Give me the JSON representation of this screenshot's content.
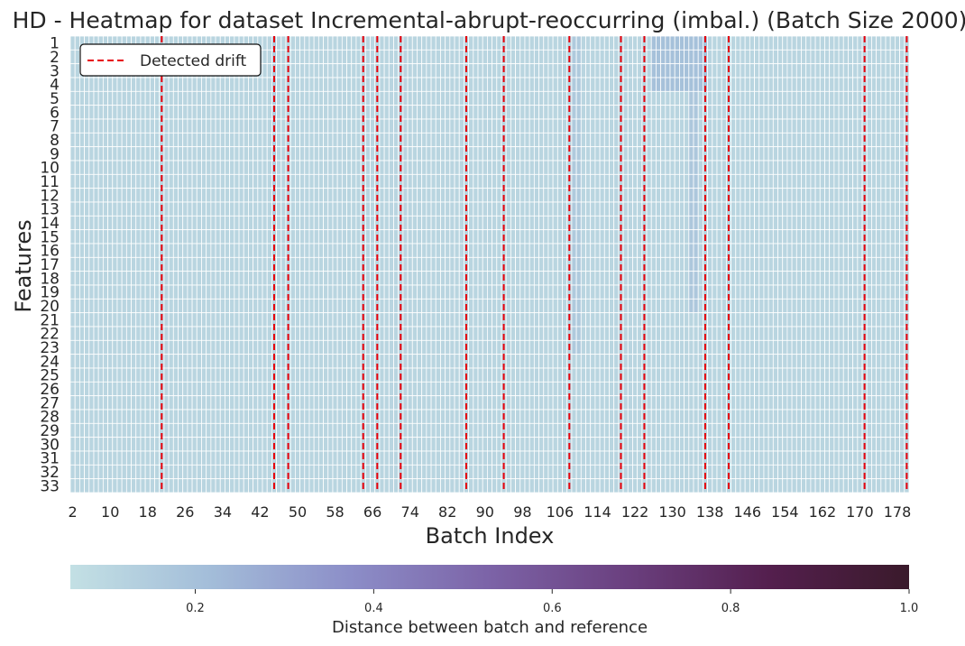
{
  "chart_data": {
    "type": "heatmap",
    "title": "HD - Heatmap for dataset Incremental-abrupt-reoccurring (imbal.) (Batch Size 2000)",
    "xlabel": "Batch Index",
    "ylabel": "Features",
    "x_range": [
      2,
      180
    ],
    "x_tick_labels": [
      "2",
      "10",
      "18",
      "26",
      "34",
      "42",
      "50",
      "58",
      "66",
      "74",
      "82",
      "90",
      "98",
      "106",
      "114",
      "122",
      "130",
      "138",
      "146",
      "154",
      "162",
      "170",
      "178"
    ],
    "y_labels": [
      "1",
      "2",
      "3",
      "4",
      "5",
      "6",
      "7",
      "8",
      "9",
      "10",
      "11",
      "12",
      "13",
      "14",
      "15",
      "16",
      "17",
      "18",
      "19",
      "20",
      "21",
      "22",
      "23",
      "24",
      "25",
      "26",
      "27",
      "28",
      "29",
      "30",
      "31",
      "32",
      "33"
    ],
    "colorbar": {
      "label": "Distance between batch and reference",
      "range": [
        0.06,
        1.0
      ],
      "ticks": [
        "0.2",
        "0.4",
        "0.6",
        "0.8",
        "1.0"
      ],
      "colors": [
        "#c3e0e4",
        "#a3bdd9",
        "#8c8ec8",
        "#7c63a7",
        "#6a3f7e",
        "#541f4e",
        "#3a1a2b"
      ]
    },
    "typical_value": 0.11,
    "elevated_regions": [
      {
        "batches": [
          126,
          137
        ],
        "features": [
          1,
          4
        ],
        "value": 0.2
      },
      {
        "batches": [
          109,
          110
        ],
        "features": [
          1,
          23
        ],
        "value": 0.16
      },
      {
        "batches": [
          134,
          135
        ],
        "features": [
          1,
          20
        ],
        "value": 0.17
      },
      {
        "batches": [
          45,
          45
        ],
        "features": [
          1,
          13
        ],
        "value": 0.15
      }
    ],
    "drift_lines": [
      21,
      45,
      48,
      64,
      67,
      72,
      86,
      94,
      108,
      119,
      124,
      137,
      142,
      171,
      180
    ],
    "drift_color": "#e8000b",
    "legend": {
      "label": "Detected drift",
      "position": "upper-left"
    }
  }
}
